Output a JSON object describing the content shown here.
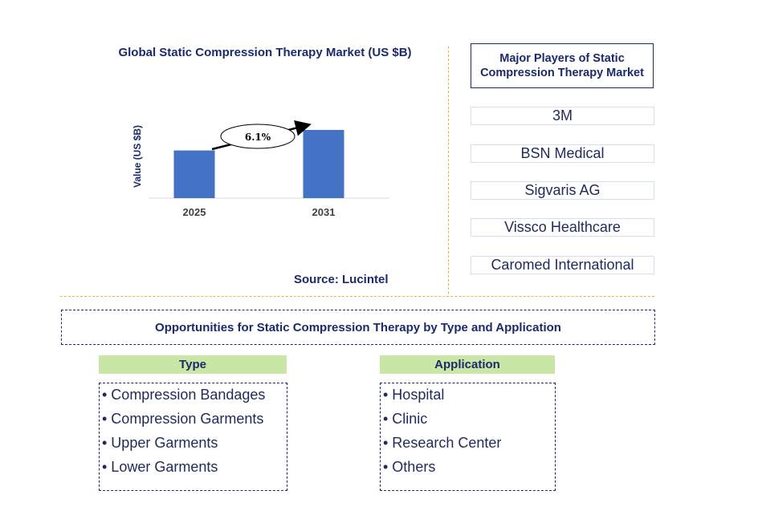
{
  "chart_data": {
    "type": "bar",
    "title": "Global Static Compression Therapy Market (US $B)",
    "ylabel": "Value (US $B)",
    "categories": [
      "2025",
      "2031"
    ],
    "values": [
      1.0,
      1.43
    ],
    "annotation": "6.1%",
    "grid": false,
    "bar_color": "#4472c4"
  },
  "source": "Source: Lucintel",
  "players": {
    "title": "Major Players of Static Compression Therapy Market",
    "items": [
      "3M",
      "BSN Medical",
      "Sigvaris AG",
      "Vissco Healthcare",
      "Caromed International"
    ]
  },
  "opportunities": {
    "title": "Opportunities for Static Compression Therapy by Type and Application",
    "type": {
      "header": "Type",
      "items": [
        "• Compression Bandages",
        "• Compression Garments",
        "• Upper Garments",
        "• Lower Garments"
      ]
    },
    "application": {
      "header": "Application",
      "items": [
        "• Hospital",
        "• Clinic",
        "• Research Center",
        "• Others"
      ]
    }
  }
}
